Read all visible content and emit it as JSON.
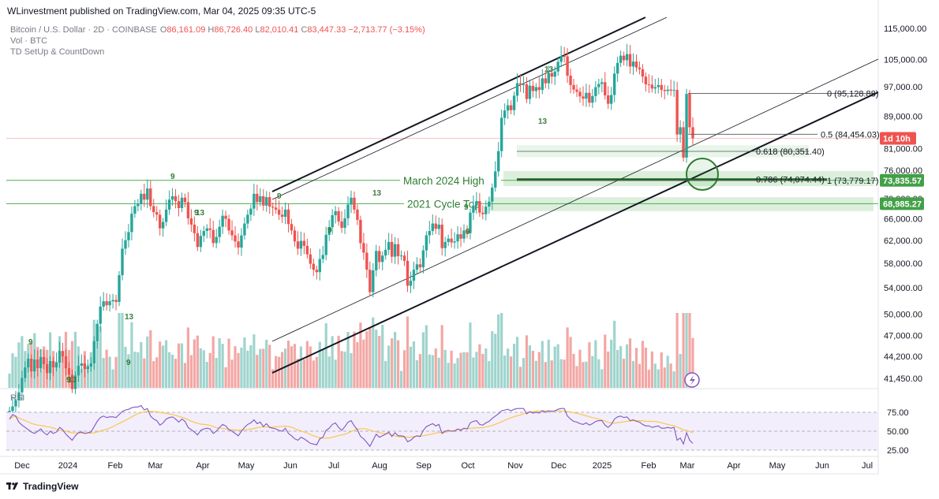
{
  "publish_line": "WLinvestment published on TradingView.com, Mar 04, 2025 09:35 UTC-5",
  "symbol_line": "Bitcoin / U.S. Dollar · 2D · COINBASE",
  "ohlc": {
    "o_label": "O",
    "o": "86,161.09",
    "h_label": "H",
    "h": "86,726.40",
    "l_label": "L",
    "l": "82,010.41",
    "c_label": "C",
    "c": "83,447.33",
    "change": "−2,713.77 (−3.15%)"
  },
  "indicators": [
    "Vol · BTC",
    "TD SetUp & CountDown"
  ],
  "price_axis": [
    "115,000.00",
    "105,000.00",
    "97,000.00",
    "89,000.00",
    "81,000.00",
    "76,000.00",
    "70,000.00",
    "66,000.00",
    "62,000.00",
    "58,000.00",
    "54,000.00",
    "50,000.00",
    "47,000.00",
    "44,200.00",
    "41,450.00"
  ],
  "price_axis_values": [
    115000,
    105000,
    97000,
    89000,
    81000,
    76000,
    70000,
    66000,
    62000,
    58000,
    54000,
    50000,
    47000,
    44200,
    41450
  ],
  "rsi_axis": [
    "75.00",
    "50.00",
    "25.00"
  ],
  "rsi_label": "RSI",
  "time_axis": [
    "Dec",
    "2024",
    "Feb",
    "Mar",
    "Apr",
    "May",
    "Jun",
    "Jul",
    "Aug",
    "Sep",
    "Oct",
    "Nov",
    "Dec",
    "2025",
    "Feb",
    "Mar",
    "Apr",
    "May",
    "Jun",
    "Jul"
  ],
  "price_tags": {
    "current": "1d 10h",
    "level_1": "73,835.57",
    "level_2": "68,985.27"
  },
  "fib_labels": [
    "0 (95,128.88)",
    "0.5 (84,454.03)",
    "0.618 (80,351.40)",
    "0.786 (74,074.44)",
    "1 (73,779.17)"
  ],
  "annotations": [
    "March 2024 High",
    "2021 Cycle Top"
  ],
  "td_counts": [
    "9",
    "13",
    "9",
    "9",
    "13",
    "9",
    "9",
    "9",
    "13",
    "9",
    "9",
    "13",
    "13",
    "9",
    "13"
  ],
  "colors": {
    "up": "#26a69a",
    "down": "#ef5350",
    "vol_up": "#9fd4cd",
    "vol_down": "#f3a7a4",
    "rsi": "#7e57c2",
    "rsi_ma": "#f9c74f",
    "zone": "#d9efd9",
    "zone_line": "#4caf50"
  },
  "footer": "TradingView",
  "chart_data": {
    "type": "candlestick",
    "title": "Bitcoin / U.S. Dollar · 2D · COINBASE",
    "y_scale": "log",
    "ylim": [
      41450,
      115000
    ],
    "x_range": [
      "Dec 2023",
      "Jul 2025"
    ],
    "horizontal_levels": [
      {
        "value": 73835.57,
        "label": "March 2024 High"
      },
      {
        "value": 68985.27,
        "label": "2021 Cycle Top"
      }
    ],
    "fibonacci": [
      {
        "ratio": "0",
        "value": 95128.88
      },
      {
        "ratio": "0.5",
        "value": 84454.03
      },
      {
        "ratio": "0.618",
        "value": 80351.4
      },
      {
        "ratio": "0.786",
        "value": 74074.44
      },
      {
        "ratio": "1",
        "value": 73779.17
      }
    ],
    "last": {
      "open": 86161.09,
      "high": 86726.4,
      "low": 82010.41,
      "close": 83447.33,
      "change": -2713.77,
      "change_pct": -3.15
    },
    "closes_approx": [
      37700,
      38200,
      38900,
      39800,
      41500,
      42800,
      43900,
      42300,
      43800,
      42700,
      44100,
      43200,
      42100,
      43600,
      42800,
      43400,
      44900,
      44200,
      42700,
      41900,
      40200,
      41800,
      43000,
      43300,
      42600,
      42900,
      43300,
      46200,
      48600,
      51100,
      51900,
      51300,
      51900,
      52100,
      51800,
      56000,
      60500,
      62000,
      63500,
      67000,
      68500,
      68900,
      71000,
      69800,
      72100,
      68500,
      67300,
      66800,
      64200,
      65400,
      67800,
      69800,
      70500,
      69500,
      68100,
      70200,
      69300,
      66100,
      64900,
      63300,
      60800,
      62800,
      63700,
      64200,
      63900,
      61500,
      62600,
      64500,
      66600,
      66000,
      63800,
      62900,
      61800,
      60700,
      62900,
      65100,
      66800,
      68000,
      71000,
      69300,
      70500,
      68600,
      70300,
      68400,
      68200,
      67800,
      66800,
      66400,
      67800,
      65000,
      63800,
      61800,
      60500,
      61900,
      61000,
      59500,
      57900,
      56900,
      56500,
      58700,
      59400,
      63000,
      64400,
      66700,
      67500,
      65500,
      64300,
      66100,
      68800,
      70200,
      67800,
      65800,
      61500,
      59800,
      56900,
      53300,
      56800,
      60100,
      58200,
      59300,
      60300,
      61700,
      59100,
      61300,
      59200,
      59300,
      58400,
      54300,
      55100,
      56900,
      57800,
      57300,
      60200,
      62900,
      63700,
      65100,
      64100,
      64900,
      60600,
      61700,
      62300,
      61600,
      61800,
      63100,
      62300,
      63800,
      63300,
      67200,
      68600,
      69500,
      67200,
      66900,
      68400,
      69400,
      72300,
      75800,
      80400,
      88600,
      90500,
      91900,
      90600,
      94500,
      98000,
      97600,
      97700,
      93600,
      97300,
      95800,
      96900,
      96100,
      99400,
      98000,
      101000,
      99900,
      101400,
      104300,
      106100,
      106000,
      100200,
      97500,
      96200,
      95600,
      94300,
      93700,
      95300,
      92600,
      94400,
      96900,
      97800,
      98300,
      94600,
      92300,
      94700,
      100800,
      104000,
      106200,
      104800,
      106700,
      102900,
      104400,
      102600,
      102100,
      99900,
      97700,
      97600,
      96500,
      96900,
      97500,
      96100,
      95800,
      96200,
      95900,
      96100,
      84400,
      86200,
      78900,
      95000,
      86200,
      83450
    ],
    "rsi_values_approx": [
      66,
      72,
      70,
      62,
      58,
      55,
      52,
      49,
      47,
      50,
      53,
      48,
      45,
      50,
      47,
      49,
      55,
      52,
      46,
      42,
      38,
      44,
      48,
      49,
      47,
      48,
      49,
      56,
      63,
      68,
      70,
      68,
      69,
      69,
      68,
      72,
      76,
      78,
      79,
      81,
      82,
      82,
      84,
      78,
      80,
      70,
      66,
      64,
      58,
      61,
      66,
      68,
      69,
      66,
      62,
      66,
      63,
      55,
      52,
      49,
      45,
      51,
      53,
      54,
      53,
      47,
      50,
      55,
      59,
      57,
      52,
      50,
      47,
      44,
      50,
      55,
      59,
      61,
      65,
      60,
      62,
      56,
      60,
      55,
      54,
      53,
      51,
      50,
      54,
      47,
      44,
      40,
      38,
      42,
      40,
      37,
      34,
      33,
      32,
      40,
      42,
      51,
      54,
      59,
      61,
      55,
      51,
      56,
      62,
      64,
      57,
      52,
      43,
      40,
      35,
      30,
      38,
      46,
      42,
      44,
      46,
      49,
      43,
      48,
      44,
      44,
      43,
      36,
      38,
      42,
      44,
      43,
      51,
      56,
      58,
      60,
      57,
      59,
      47,
      50,
      51,
      50,
      50,
      53,
      51,
      54,
      53,
      61,
      63,
      64,
      59,
      58,
      61,
      63,
      67,
      70,
      73,
      77,
      78,
      79,
      77,
      79,
      80,
      80,
      80,
      73,
      76,
      74,
      75,
      74,
      77,
      75,
      77,
      76,
      77,
      79,
      80,
      80,
      70,
      66,
      63,
      62,
      60,
      59,
      61,
      58,
      60,
      63,
      64,
      64,
      58,
      55,
      59,
      66,
      69,
      70,
      68,
      69,
      64,
      65,
      63,
      62,
      59,
      57,
      57,
      55,
      56,
      57,
      54,
      54,
      55,
      54,
      55,
      38,
      41,
      33,
      48,
      38,
      34
    ]
  }
}
